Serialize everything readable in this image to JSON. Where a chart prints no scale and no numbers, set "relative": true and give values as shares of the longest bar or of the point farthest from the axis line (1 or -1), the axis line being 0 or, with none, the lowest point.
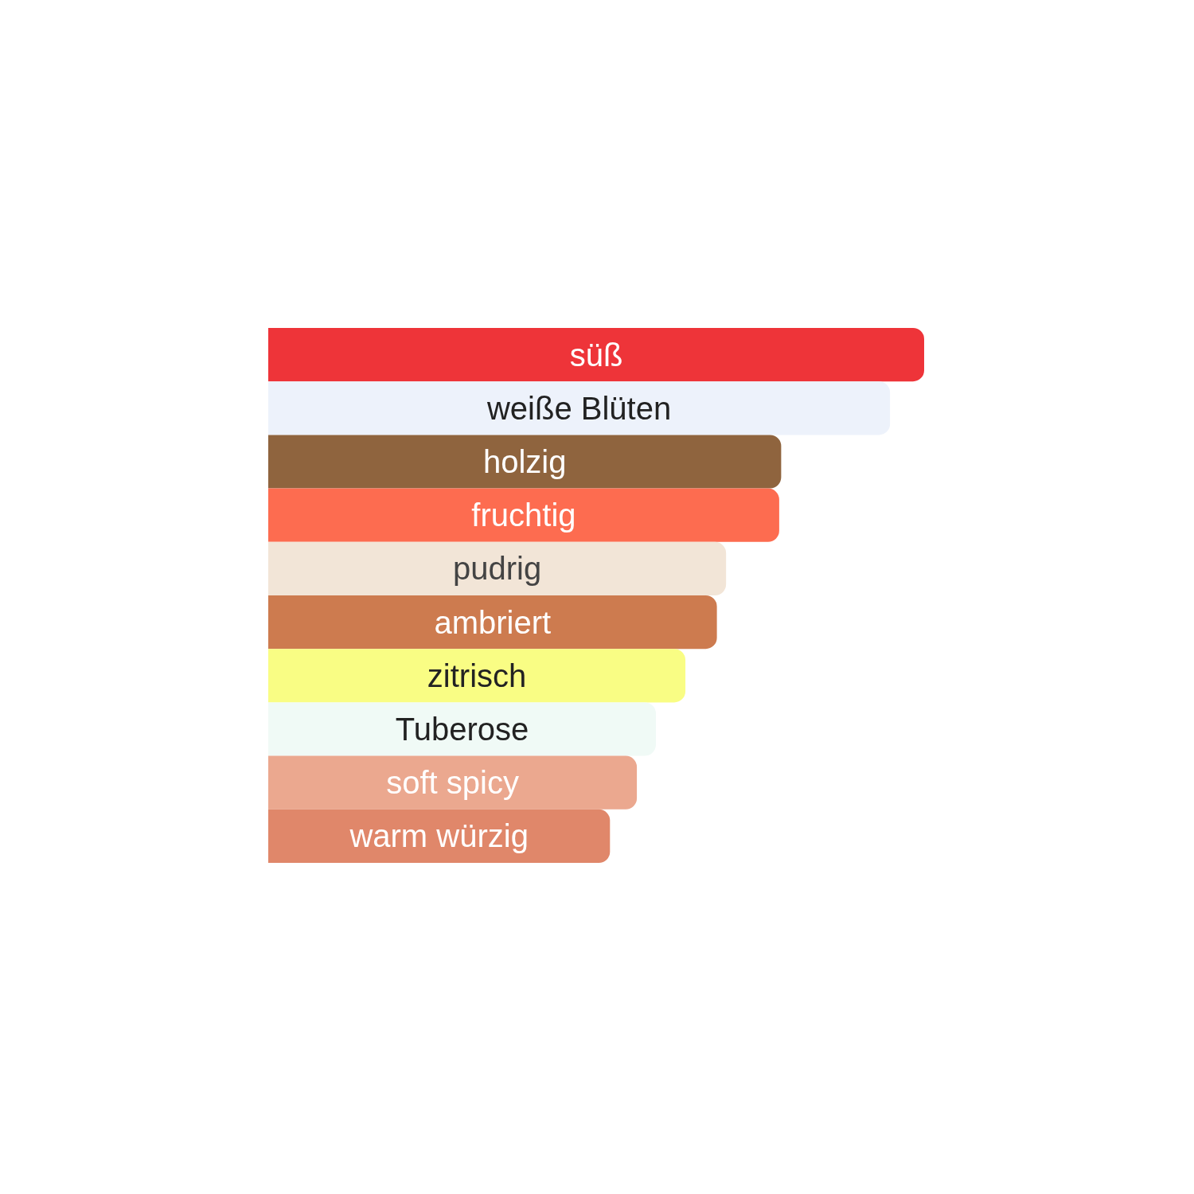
{
  "chart_data": {
    "type": "bar",
    "orientation": "horizontal",
    "relative": true,
    "categories": [
      "süß",
      "weiße Blüten",
      "holzig",
      "fruchtig",
      "pudrig",
      "ambriert",
      "zitrisch",
      "Tuberose",
      "soft spicy",
      "warm würzig"
    ],
    "values": [
      1,
      0.948,
      0.782,
      0.779,
      0.698,
      0.684,
      0.636,
      0.591,
      0.562,
      0.521
    ],
    "colors": [
      "#ee3439",
      "#edf2fb",
      "#8f643e",
      "#fd6c50",
      "#f2e5d7",
      "#cd7b4f",
      "#f9fd84",
      "#f0faf6",
      "#eba88f",
      "#e0876a"
    ]
  }
}
